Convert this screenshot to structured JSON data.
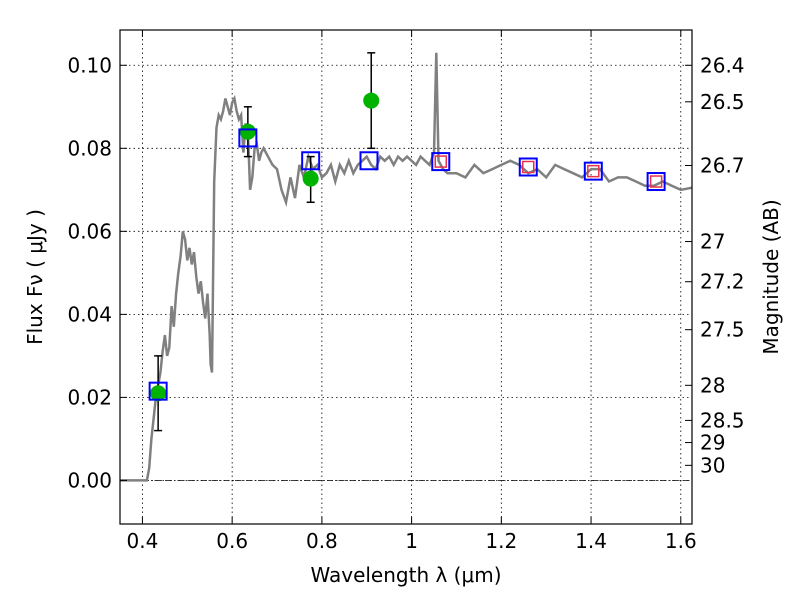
{
  "chart_data": {
    "type": "scatter",
    "xlabel": "Wavelength  λ (μm)",
    "ylabel": "Flux  Fν  ( μJy )",
    "ylabel_right": "Magnitude (AB)",
    "xlim": [
      0.35,
      1.625
    ],
    "ylim": [
      -0.0105,
      0.1085
    ],
    "x_ticks": [
      0.4,
      0.6,
      0.8,
      1.0,
      1.2,
      1.4,
      1.6
    ],
    "x_tick_labels": [
      "0.4",
      "0.6",
      "0.8",
      "1",
      "1.2",
      "1.4",
      "1.6"
    ],
    "y_ticks": [
      0.0,
      0.02,
      0.04,
      0.06,
      0.08,
      0.1
    ],
    "y_tick_labels": [
      "0.00",
      "0.02",
      "0.04",
      "0.06",
      "0.08",
      "0.10"
    ],
    "right_ticks": [
      26.4,
      26.5,
      26.7,
      27.0,
      27.2,
      27.5,
      28.0,
      28.5,
      29.0,
      30.0
    ],
    "right_tick_labels": [
      "26.4",
      "26.5",
      "26.7",
      "27",
      "27.2",
      "27.5",
      "28",
      "28.5",
      "29",
      "30"
    ],
    "grid": true,
    "zero_line": true,
    "colors": {
      "spectrum": "#808080",
      "observed": "#00b300",
      "model_blue": "#0000ff",
      "model_red": "#e8304a",
      "errorbar": "#000000"
    },
    "series": [
      {
        "kind": "model-spectrum",
        "x": [
          0.35,
          0.41,
          0.415,
          0.42,
          0.43,
          0.44,
          0.445,
          0.45,
          0.455,
          0.46,
          0.465,
          0.47,
          0.475,
          0.48,
          0.485,
          0.49,
          0.495,
          0.5,
          0.505,
          0.51,
          0.515,
          0.52,
          0.525,
          0.53,
          0.535,
          0.54,
          0.545,
          0.55,
          0.552,
          0.555,
          0.56,
          0.565,
          0.57,
          0.575,
          0.58,
          0.585,
          0.59,
          0.595,
          0.6,
          0.605,
          0.61,
          0.615,
          0.62,
          0.625,
          0.63,
          0.635,
          0.64,
          0.645,
          0.65,
          0.655,
          0.66,
          0.665,
          0.67,
          0.68,
          0.69,
          0.7,
          0.71,
          0.72,
          0.73,
          0.74,
          0.75,
          0.76,
          0.77,
          0.78,
          0.79,
          0.8,
          0.81,
          0.82,
          0.83,
          0.84,
          0.85,
          0.86,
          0.87,
          0.88,
          0.89,
          0.9,
          0.91,
          0.92,
          0.93,
          0.94,
          0.95,
          0.96,
          0.97,
          0.98,
          0.99,
          1.0,
          1.01,
          1.02,
          1.03,
          1.04,
          1.05,
          1.055,
          1.06,
          1.065,
          1.07,
          1.08,
          1.1,
          1.12,
          1.14,
          1.16,
          1.18,
          1.2,
          1.22,
          1.24,
          1.26,
          1.28,
          1.3,
          1.32,
          1.34,
          1.36,
          1.38,
          1.4,
          1.42,
          1.44,
          1.46,
          1.48,
          1.5,
          1.52,
          1.54,
          1.56,
          1.58,
          1.6,
          1.625
        ],
        "y": [
          0.0,
          0.0,
          0.003,
          0.01,
          0.02,
          0.026,
          0.031,
          0.035,
          0.03,
          0.032,
          0.042,
          0.037,
          0.045,
          0.05,
          0.054,
          0.06,
          0.058,
          0.053,
          0.056,
          0.052,
          0.055,
          0.049,
          0.045,
          0.048,
          0.043,
          0.039,
          0.045,
          0.035,
          0.028,
          0.026,
          0.072,
          0.085,
          0.088,
          0.087,
          0.089,
          0.092,
          0.09,
          0.088,
          0.091,
          0.092,
          0.089,
          0.087,
          0.088,
          0.079,
          0.086,
          0.084,
          0.07,
          0.073,
          0.08,
          0.081,
          0.077,
          0.079,
          0.08,
          0.078,
          0.076,
          0.075,
          0.07,
          0.067,
          0.073,
          0.068,
          0.076,
          0.073,
          0.078,
          0.075,
          0.076,
          0.073,
          0.074,
          0.076,
          0.072,
          0.076,
          0.074,
          0.077,
          0.074,
          0.076,
          0.077,
          0.078,
          0.076,
          0.075,
          0.078,
          0.077,
          0.078,
          0.076,
          0.078,
          0.077,
          0.078,
          0.077,
          0.076,
          0.078,
          0.077,
          0.076,
          0.079,
          0.103,
          0.077,
          0.076,
          0.075,
          0.074,
          0.074,
          0.073,
          0.076,
          0.074,
          0.075,
          0.076,
          0.077,
          0.076,
          0.074,
          0.075,
          0.073,
          0.076,
          0.075,
          0.074,
          0.073,
          0.075,
          0.075,
          0.072,
          0.073,
          0.073,
          0.072,
          0.071,
          0.071,
          0.072,
          0.071,
          0.07,
          0.0705
        ]
      },
      {
        "kind": "observed-photometry",
        "x": [
          0.435,
          0.635,
          0.775,
          0.91
        ],
        "y": [
          0.021,
          0.084,
          0.0727,
          0.0915
        ],
        "yerr_low": [
          0.012,
          0.078,
          0.067,
          0.08
        ],
        "yerr_high": [
          0.03,
          0.09,
          0.078,
          0.103
        ]
      },
      {
        "kind": "model-photometry",
        "x": [
          0.435,
          0.635,
          0.775,
          0.905,
          1.065,
          1.26,
          1.405,
          1.545
        ],
        "y": [
          0.0215,
          0.0825,
          0.077,
          0.077,
          0.0768,
          0.0755,
          0.0745,
          0.072
        ]
      },
      {
        "kind": "model-photometry-inner",
        "x": [
          1.065,
          1.26,
          1.405,
          1.545
        ],
        "y": [
          0.0768,
          0.0755,
          0.0745,
          0.072
        ]
      }
    ]
  }
}
